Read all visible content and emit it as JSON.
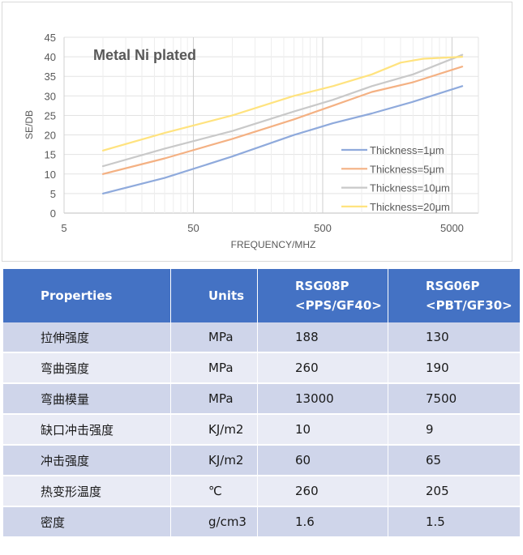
{
  "chart_data": {
    "type": "line",
    "title": "Metal Ni plated",
    "xlabel": "FREQUENCY/MHZ",
    "ylabel": "SE/DB",
    "xscale": "log",
    "xlim": [
      5,
      8000
    ],
    "ylim": [
      0,
      45
    ],
    "x_ticks": [
      "5",
      "50",
      "500",
      "5000"
    ],
    "y_ticks": [
      "0",
      "5",
      "10",
      "15",
      "20",
      "25",
      "30",
      "35",
      "40",
      "45"
    ],
    "grid": true,
    "legend_position": "bottom-right",
    "series": [
      {
        "name": "Thickness=1μm",
        "color": "#8faadc",
        "x": [
          10,
          30,
          100,
          300,
          600,
          1200,
          2500,
          6000
        ],
        "y": [
          5,
          9,
          14.5,
          20,
          23,
          25.5,
          28.5,
          32.5
        ]
      },
      {
        "name": "Thickness=5μm",
        "color": "#f4b183",
        "x": [
          10,
          30,
          100,
          300,
          600,
          1200,
          2500,
          6000
        ],
        "y": [
          10,
          14,
          19,
          24,
          27.5,
          31,
          33.5,
          37.5
        ]
      },
      {
        "name": "Thickness=10μm",
        "color": "#c9c9c9",
        "x": [
          10,
          30,
          100,
          300,
          600,
          1200,
          2500,
          6000
        ],
        "y": [
          12,
          16.5,
          21,
          26,
          29,
          32.5,
          35.5,
          40.5
        ]
      },
      {
        "name": "Thickness=20μm",
        "color": "#ffe37f",
        "x": [
          10,
          30,
          100,
          300,
          600,
          1200,
          2000,
          3000,
          6000
        ],
        "y": [
          16,
          20.5,
          25,
          30,
          32.5,
          35.5,
          38.5,
          39.5,
          40
        ]
      }
    ]
  },
  "table": {
    "headers": [
      {
        "line1": "Properties",
        "line2": ""
      },
      {
        "line1": "Units",
        "line2": ""
      },
      {
        "line1": "RSG08P",
        "line2": "<PPS/GF40>"
      },
      {
        "line1": "RSG06P",
        "line2": "<PBT/GF30>"
      }
    ],
    "rows": [
      [
        "拉伸强度",
        "MPa",
        "188",
        "130"
      ],
      [
        "弯曲强度",
        "MPa",
        "260",
        "190"
      ],
      [
        "弯曲模量",
        "MPa",
        "13000",
        "7500"
      ],
      [
        "缺口冲击强度",
        "KJ/m2",
        "10",
        "9"
      ],
      [
        "冲击强度",
        "KJ/m2",
        "60",
        "65"
      ],
      [
        "热变形温度",
        "℃",
        "260",
        "205"
      ],
      [
        "密度",
        "g/cm3",
        "1.6",
        "1.5"
      ]
    ],
    "header_color": "#4472c4",
    "row_colors": [
      "#cfd5ea",
      "#e9ebf5"
    ]
  }
}
